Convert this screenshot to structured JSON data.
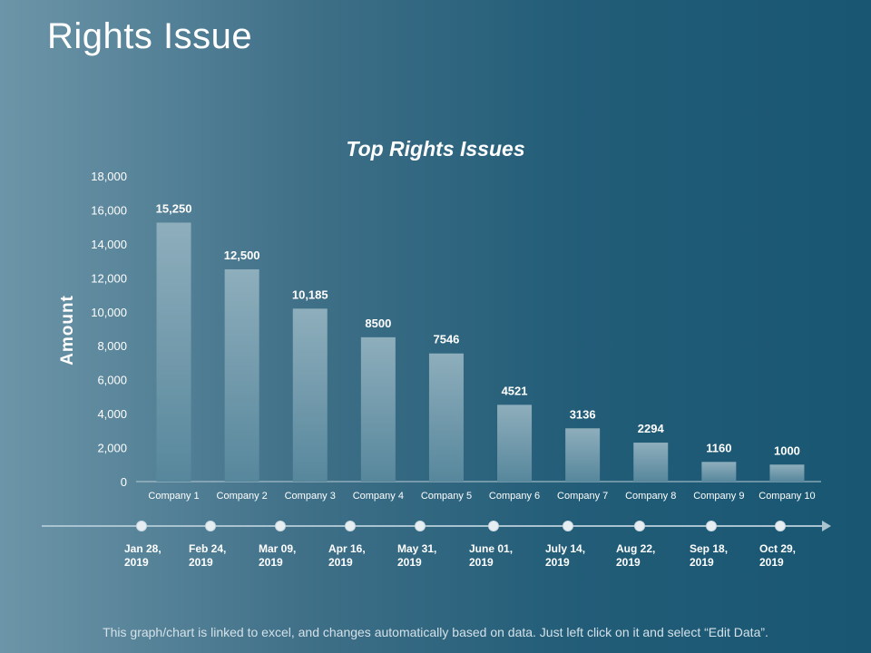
{
  "slide": {
    "title": "Rights Issue",
    "footer": "This graph/chart is linked to excel, and changes automatically based on data. Just left click on it and select “Edit Data”."
  },
  "colors": {
    "bar_top": "#8eaebc",
    "bar_bottom": "#57879c",
    "background_left": "#6d95a8",
    "background_right": "#185672"
  },
  "chart_data": {
    "type": "bar",
    "title": "Top Rights Issues",
    "xlabel": "",
    "ylabel": "Amount",
    "ylim": [
      0,
      18000
    ],
    "yticks": [
      0,
      2000,
      4000,
      6000,
      8000,
      10000,
      12000,
      14000,
      16000,
      18000
    ],
    "ytick_labels": [
      "0",
      "2,000",
      "4,000",
      "6,000",
      "8,000",
      "10,000",
      "12,000",
      "14,000",
      "16,000",
      "18,000"
    ],
    "categories": [
      "Company 1",
      "Company 2",
      "Company 3",
      "Company 4",
      "Company 5",
      "Company 6",
      "Company 7",
      "Company 8",
      "Company 9",
      "Company 10"
    ],
    "values": [
      15250,
      12500,
      10185,
      8500,
      7546,
      4521,
      3136,
      2294,
      1160,
      1000
    ],
    "data_labels": [
      "15,250",
      "12,500",
      "10,185",
      "8500",
      "7546",
      "4521",
      "3136",
      "2294",
      "1160",
      "1000"
    ],
    "grid": false
  },
  "timeline": {
    "dates": [
      "Jan 28,\n2019",
      "Feb 24,\n2019",
      "Mar 09,\n2019",
      "Apr 16,\n2019",
      "May 31,\n2019",
      "June 01,\n2019",
      "July 14,\n2019",
      "Aug 22,\n2019",
      "Sep 18,\n2019",
      "Oct 29,\n2019"
    ]
  }
}
